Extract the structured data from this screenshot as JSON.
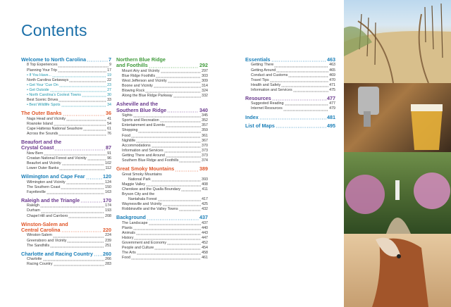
{
  "header": {
    "title": "Contents"
  },
  "columns": [
    {
      "sections": [
        {
          "lines": [
            "Welcome to North Carolina"
          ],
          "page": "7",
          "color": "#1b7fb8",
          "entries": [
            {
              "lines": [
                "8 Top Experiences"
              ],
              "page": "9"
            },
            {
              "lines": [
                "Planning Your Trip"
              ],
              "page": "17"
            },
            {
              "lines": [
                "If You Have..."
              ],
              "page": "19",
              "bullet": true
            },
            {
              "lines": [
                "North Carolina Getaways"
              ],
              "page": "22"
            },
            {
              "lines": [
                "Get Your 'Cue On"
              ],
              "page": "23",
              "bullet": true
            },
            {
              "lines": [
                "Get Outside"
              ],
              "page": "27",
              "bullet": true
            },
            {
              "lines": [
                "North Carolina's Coolest Towns"
              ],
              "page": "30",
              "bullet": true
            },
            {
              "lines": [
                "Best Scenic Drives"
              ],
              "page": "33"
            },
            {
              "lines": [
                "Best Wildlife Spots"
              ],
              "page": "34",
              "bullet": true
            }
          ]
        },
        {
          "lines": [
            "The Outer Banks"
          ],
          "page": "36",
          "color": "#e0572a",
          "entries": [
            {
              "lines": [
                "Nags Head and Vicinity"
              ],
              "page": "41"
            },
            {
              "lines": [
                "Roanoke Island"
              ],
              "page": "54"
            },
            {
              "lines": [
                "Cape Hatteras National Seashore"
              ],
              "page": "61"
            },
            {
              "lines": [
                "Across the Sounds"
              ],
              "page": "76"
            }
          ]
        },
        {
          "lines": [
            "Beaufort and the",
            "Crystal Coast"
          ],
          "page": "87",
          "color": "#6b3a8e",
          "entries": [
            {
              "lines": [
                "New Bern"
              ],
              "page": "91"
            },
            {
              "lines": [
                "Croatan National Forest and Vicinity"
              ],
              "page": "96"
            },
            {
              "lines": [
                "Beaufort and Vicinity"
              ],
              "page": "102"
            },
            {
              "lines": [
                "Lower Outer Banks"
              ],
              "page": "112"
            }
          ]
        },
        {
          "lines": [
            "Wilmington and Cape Fear"
          ],
          "page": "120",
          "color": "#1b7fb8",
          "entries": [
            {
              "lines": [
                "Wilmington and Vicinity"
              ],
              "page": "124"
            },
            {
              "lines": [
                "The Southern Coast"
              ],
              "page": "150"
            },
            {
              "lines": [
                "Fayetteville"
              ],
              "page": "163"
            }
          ]
        },
        {
          "lines": [
            "Raleigh and the Triangle"
          ],
          "page": "170",
          "color": "#6b3a8e",
          "entries": [
            {
              "lines": [
                "Raleigh"
              ],
              "page": "174"
            },
            {
              "lines": [
                "Durham"
              ],
              "page": "193"
            },
            {
              "lines": [
                "Chapel Hill and Carrboro"
              ],
              "page": "208"
            }
          ]
        },
        {
          "lines": [
            "Winston-Salem and",
            "Central Carolina"
          ],
          "page": "220",
          "color": "#e0572a",
          "entries": [
            {
              "lines": [
                "Winston-Salem"
              ],
              "page": "224"
            },
            {
              "lines": [
                "Greensboro and Vicinity"
              ],
              "page": "239"
            },
            {
              "lines": [
                "The Sandhills"
              ],
              "page": "251"
            }
          ]
        },
        {
          "lines": [
            "Charlotte and Racing Country"
          ],
          "page": "260",
          "color": "#1b7fb8",
          "entries": [
            {
              "lines": [
                "Charlotte"
              ],
              "page": "266"
            },
            {
              "lines": [
                "Racing Country"
              ],
              "page": "283"
            }
          ]
        }
      ]
    },
    {
      "sections": [
        {
          "lines": [
            "Northern Blue Ridge",
            "and Foothills"
          ],
          "page": "292",
          "color": "#3f9a3a",
          "entries": [
            {
              "lines": [
                "Mount Airy and Vicinity"
              ],
              "page": "297"
            },
            {
              "lines": [
                "Blue Ridge Foothills"
              ],
              "page": "303"
            },
            {
              "lines": [
                "West Jefferson and Vicinity"
              ],
              "page": "309"
            },
            {
              "lines": [
                "Boone and Vicinity"
              ],
              "page": "314"
            },
            {
              "lines": [
                "Blowing Rock"
              ],
              "page": "324"
            },
            {
              "lines": [
                "Along the Blue Ridge Parkway"
              ],
              "page": "332"
            }
          ]
        },
        {
          "lines": [
            "Asheville and the",
            "Southern Blue Ridge"
          ],
          "page": "340",
          "color": "#6b3a8e",
          "entries": [
            {
              "lines": [
                "Sights"
              ],
              "page": "345"
            },
            {
              "lines": [
                "Sports and Recreation"
              ],
              "page": "352"
            },
            {
              "lines": [
                "Entertainment and Events"
              ],
              "page": "357"
            },
            {
              "lines": [
                "Shopping"
              ],
              "page": "359"
            },
            {
              "lines": [
                "Food"
              ],
              "page": "361"
            },
            {
              "lines": [
                "Nightlife"
              ],
              "page": "367"
            },
            {
              "lines": [
                "Accommodations"
              ],
              "page": "370"
            },
            {
              "lines": [
                "Information and Services"
              ],
              "page": "373"
            },
            {
              "lines": [
                "Getting There and Around"
              ],
              "page": "373"
            },
            {
              "lines": [
                "Southern Blue Ridge and Foothills"
              ],
              "page": "374"
            }
          ]
        },
        {
          "lines": [
            "Great Smoky Mountains"
          ],
          "page": "389",
          "color": "#e0572a",
          "entries": [
            {
              "lines": [
                "Great Smoky Mountains",
                "National Park"
              ],
              "page": "393"
            },
            {
              "lines": [
                "Maggie Valley"
              ],
              "page": "408"
            },
            {
              "lines": [
                "Cherokee and the Qualla Boundary"
              ],
              "page": "411"
            },
            {
              "lines": [
                "Bryson City and the",
                "Nantahala Forest"
              ],
              "page": "417"
            },
            {
              "lines": [
                "Waynesville and Vicinity"
              ],
              "page": "425"
            },
            {
              "lines": [
                "Robbinsville and the Valley Towns"
              ],
              "page": "432"
            }
          ]
        },
        {
          "lines": [
            "Background"
          ],
          "page": "437",
          "color": "#1b7fb8",
          "entries": [
            {
              "lines": [
                "The Landscape"
              ],
              "page": "437"
            },
            {
              "lines": [
                "Plants"
              ],
              "page": "440"
            },
            {
              "lines": [
                "Animals"
              ],
              "page": "443"
            },
            {
              "lines": [
                "History"
              ],
              "page": "447"
            },
            {
              "lines": [
                "Government and Economy"
              ],
              "page": "452"
            },
            {
              "lines": [
                "People and Culture"
              ],
              "page": "454"
            },
            {
              "lines": [
                "The Arts"
              ],
              "page": "458"
            },
            {
              "lines": [
                "Food"
              ],
              "page": "461"
            }
          ]
        }
      ]
    },
    {
      "sections": [
        {
          "lines": [
            "Essentials"
          ],
          "page": "463",
          "color": "#1b7fb8",
          "entries": [
            {
              "lines": [
                "Getting There"
              ],
              "page": "463"
            },
            {
              "lines": [
                "Getting Around"
              ],
              "page": "465"
            },
            {
              "lines": [
                "Conduct and Customs"
              ],
              "page": "469"
            },
            {
              "lines": [
                "Travel Tips"
              ],
              "page": "470"
            },
            {
              "lines": [
                "Health and Safety"
              ],
              "page": "471"
            },
            {
              "lines": [
                "Information and Services"
              ],
              "page": "475"
            }
          ]
        },
        {
          "lines": [
            "Resources"
          ],
          "page": "477",
          "color": "#6b3a8e",
          "entries": [
            {
              "lines": [
                "Suggested Reading"
              ],
              "page": "477"
            },
            {
              "lines": [
                "Internet Resources"
              ],
              "page": "479"
            }
          ]
        },
        {
          "lines": [
            "Index"
          ],
          "page": "481",
          "color": "#1b7fb8",
          "entries": []
        },
        {
          "lines": [
            "List of Maps"
          ],
          "page": "495",
          "color": "#1b7fb8",
          "entries": []
        }
      ]
    }
  ]
}
